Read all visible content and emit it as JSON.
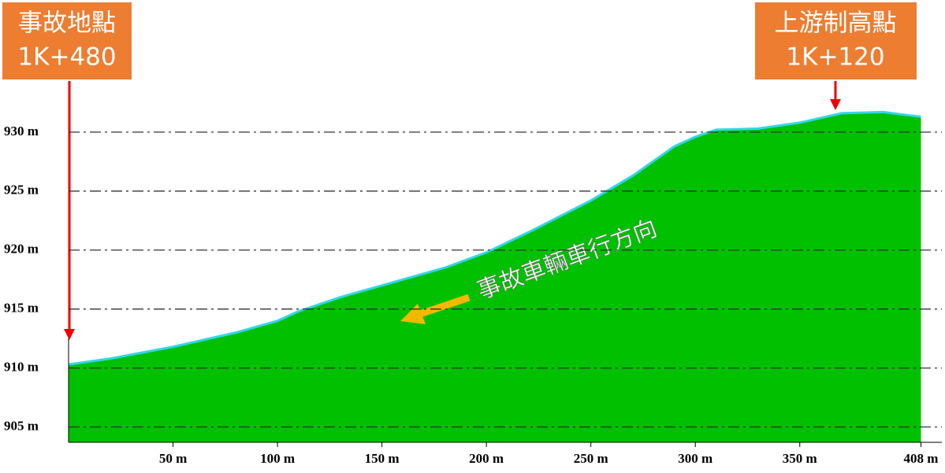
{
  "chart_data": {
    "type": "area",
    "x": [
      0,
      20,
      50,
      80,
      100,
      110,
      130,
      150,
      180,
      200,
      220,
      250,
      270,
      290,
      300,
      310,
      330,
      350,
      370,
      390,
      408
    ],
    "series": [
      {
        "color": "#00c000",
        "values": [
          910.3,
          910.8,
          911.8,
          913.0,
          914.0,
          914.8,
          916.0,
          917.0,
          918.5,
          919.8,
          921.5,
          924.2,
          926.3,
          928.8,
          929.6,
          930.2,
          930.3,
          930.8,
          931.6,
          931.7,
          931.3
        ]
      }
    ],
    "line_color": "#33d6e6",
    "xlim": [
      0,
      418
    ],
    "ylim": [
      903.7,
      936
    ],
    "xticks": [
      {
        "value": 50,
        "label": "50 m"
      },
      {
        "value": 100,
        "label": "100 m"
      },
      {
        "value": 150,
        "label": "150 m"
      },
      {
        "value": 200,
        "label": "200 m"
      },
      {
        "value": 250,
        "label": "250 m"
      },
      {
        "value": 300,
        "label": "300 m"
      },
      {
        "value": 350,
        "label": "350 m"
      },
      {
        "value": 408,
        "label": "408 m"
      }
    ],
    "yticks": [
      {
        "value": 905,
        "label": "905 m"
      },
      {
        "value": 910,
        "label": "910 m"
      },
      {
        "value": 915,
        "label": "915 m"
      },
      {
        "value": 920,
        "label": "920 m"
      },
      {
        "value": 925,
        "label": "925 m"
      },
      {
        "value": 930,
        "label": "930 m"
      }
    ],
    "grid": true,
    "annotations": {
      "start": [
        "事故地點",
        "1K+480"
      ],
      "end": [
        "上游制高點",
        "1K+120"
      ],
      "direction": "事故車輛車行方向"
    }
  }
}
